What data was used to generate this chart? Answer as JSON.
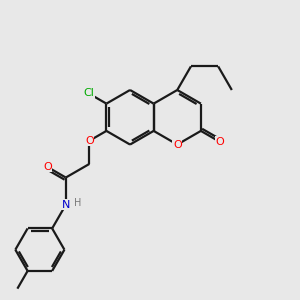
{
  "bg_color": "#e8e8e8",
  "atom_colors": {
    "O": "#ff0000",
    "N": "#0000cc",
    "Cl": "#00aa00",
    "C": "#1a1a1a",
    "H": "#7a7a7a"
  },
  "line_color": "#1a1a1a",
  "line_width": 1.6,
  "figsize": [
    3.0,
    3.0
  ],
  "dpi": 100,
  "xlim": [
    -1.5,
    8.5
  ],
  "ylim": [
    -5.5,
    5.5
  ]
}
